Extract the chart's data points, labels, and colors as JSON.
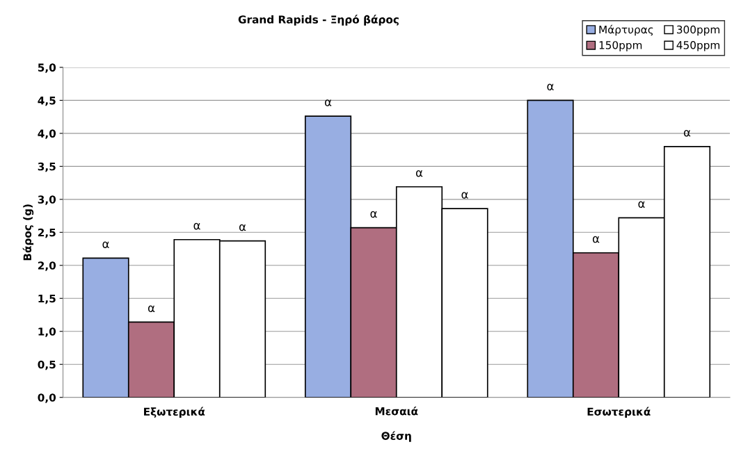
{
  "chart_data": {
    "type": "bar",
    "title": "Grand Rapids - Ξηρό βάρος",
    "xlabel": "Θέση",
    "ylabel": "Βάρος (g)",
    "categories": [
      "Εξωτερικά",
      "Μεσαιά",
      "Εσωτερικά"
    ],
    "series": [
      {
        "name": "Μάρτυρας",
        "color": "#98aee2",
        "values": [
          2.11,
          4.26,
          4.5
        ],
        "value_labels": [
          "α",
          "α",
          "α"
        ]
      },
      {
        "name": "150ppm",
        "color": "#b06e80",
        "values": [
          1.14,
          2.57,
          2.19
        ],
        "value_labels": [
          "α",
          "α",
          "α"
        ]
      },
      {
        "name": "300ppm",
        "color": "#ffffff",
        "values": [
          2.39,
          3.19,
          2.72
        ],
        "value_labels": [
          "α",
          "α",
          "α"
        ]
      },
      {
        "name": "450ppm",
        "color": "#ffffff",
        "values": [
          2.37,
          2.86,
          3.8
        ],
        "value_labels": [
          "α",
          "α",
          "α"
        ]
      }
    ],
    "ylim": [
      0,
      5
    ],
    "yticks": [
      {
        "value": 0,
        "label": "0,0"
      },
      {
        "value": 0.5,
        "label": "0,5"
      },
      {
        "value": 1,
        "label": "1,0"
      },
      {
        "value": 1.5,
        "label": "1,5"
      },
      {
        "value": 2,
        "label": "2,0"
      },
      {
        "value": 2.5,
        "label": "2,5"
      },
      {
        "value": 3,
        "label": "3,0"
      },
      {
        "value": 3.5,
        "label": "3,5"
      },
      {
        "value": 4,
        "label": "4,0"
      },
      {
        "value": 4.5,
        "label": "4,5"
      },
      {
        "value": 5,
        "label": "5,0"
      }
    ],
    "grid": "y",
    "legend": "top right"
  }
}
